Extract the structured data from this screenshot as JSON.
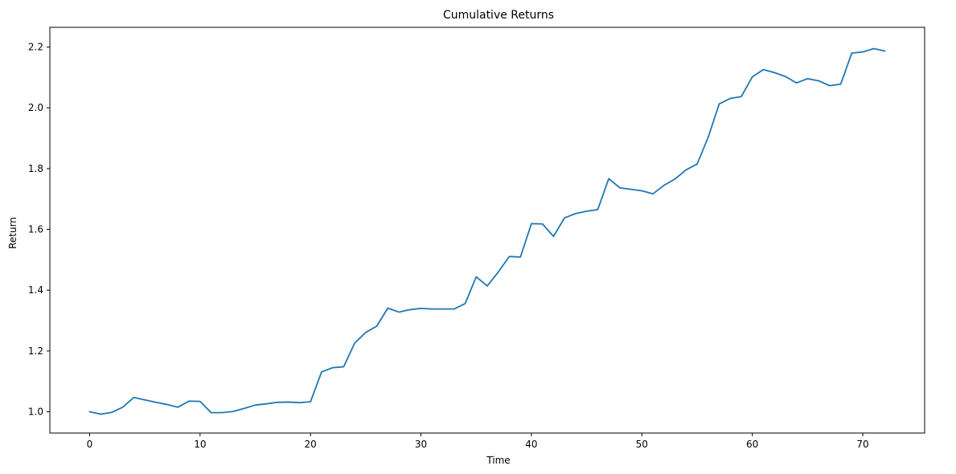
{
  "chart_data": {
    "type": "line",
    "title": "Cumulative Returns",
    "xlabel": "Time",
    "ylabel": "Return",
    "xlim": [
      -3.6,
      75.6
    ],
    "ylim": [
      0.93,
      2.265
    ],
    "xticks": [
      0,
      10,
      20,
      30,
      40,
      50,
      60,
      70
    ],
    "yticks": [
      1.0,
      1.2,
      1.4,
      1.6,
      1.8,
      2.0,
      2.2
    ],
    "grid": false,
    "series": [
      {
        "color": "#1f77b4",
        "x": [
          0,
          1,
          2,
          3,
          4,
          5,
          6,
          7,
          8,
          9,
          10,
          11,
          12,
          13,
          14,
          15,
          16,
          17,
          18,
          19,
          20,
          21,
          22,
          23,
          24,
          25,
          26,
          27,
          28,
          29,
          30,
          31,
          32,
          33,
          34,
          35,
          36,
          37,
          38,
          39,
          40,
          41,
          42,
          43,
          44,
          45,
          46,
          47,
          48,
          49,
          50,
          51,
          52,
          53,
          54,
          55,
          56,
          57,
          58,
          59,
          60,
          61,
          62,
          63,
          64,
          65,
          66,
          67,
          68,
          69,
          70,
          71,
          72
        ],
        "values": [
          1.0,
          0.992,
          0.998,
          1.015,
          1.047,
          1.039,
          1.031,
          1.024,
          1.015,
          1.035,
          1.034,
          0.997,
          0.997,
          1.001,
          1.011,
          1.022,
          1.026,
          1.031,
          1.032,
          1.03,
          1.033,
          1.131,
          1.145,
          1.148,
          1.226,
          1.261,
          1.282,
          1.341,
          1.328,
          1.336,
          1.34,
          1.338,
          1.338,
          1.338,
          1.356,
          1.444,
          1.414,
          1.46,
          1.511,
          1.509,
          1.619,
          1.618,
          1.577,
          1.638,
          1.652,
          1.66,
          1.665,
          1.767,
          1.737,
          1.732,
          1.727,
          1.717,
          1.745,
          1.766,
          1.796,
          1.815,
          1.903,
          2.013,
          2.031,
          2.037,
          2.102,
          2.126,
          2.116,
          2.103,
          2.082,
          2.096,
          2.089,
          2.073,
          2.078,
          2.18,
          2.184,
          2.195,
          2.187
        ]
      }
    ]
  }
}
